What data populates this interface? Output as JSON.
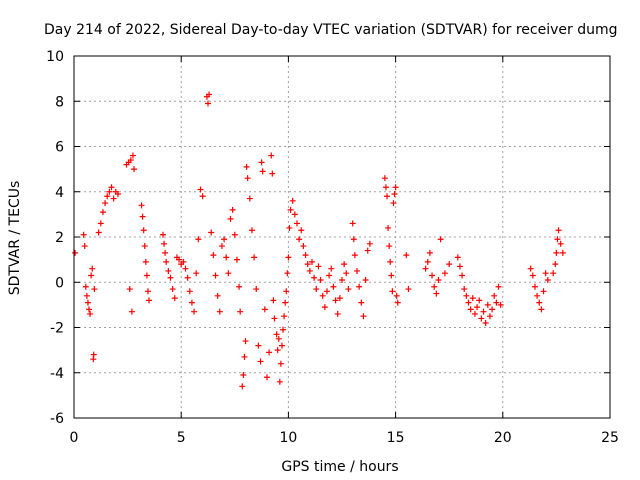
{
  "chart_data": {
    "type": "scatter",
    "title": "Day 214 of 2022, Sidereal Day-to-day VTEC variation (SDTVAR) for receiver dumg",
    "xlabel": "GPS time / hours",
    "ylabel": "SDTVAR / TECUs",
    "xlim": [
      0,
      25
    ],
    "ylim": [
      -6,
      10
    ],
    "xticks": [
      0,
      5,
      10,
      15,
      20,
      25
    ],
    "yticks": [
      -6,
      -4,
      -2,
      0,
      2,
      4,
      6,
      8,
      10
    ],
    "grid": true,
    "marker": "+",
    "series": [
      {
        "name": "SDTVAR",
        "color": "#ff0000",
        "points": [
          [
            0.05,
            1.3
          ],
          [
            0.45,
            2.1
          ],
          [
            0.5,
            1.6
          ],
          [
            0.55,
            -0.2
          ],
          [
            0.6,
            -0.6
          ],
          [
            0.65,
            -0.9
          ],
          [
            0.7,
            -1.2
          ],
          [
            0.75,
            -1.4
          ],
          [
            0.8,
            0.3
          ],
          [
            0.85,
            0.6
          ],
          [
            0.9,
            -3.4
          ],
          [
            0.92,
            -3.2
          ],
          [
            0.95,
            -0.3
          ],
          [
            1.15,
            2.2
          ],
          [
            1.25,
            2.6
          ],
          [
            1.35,
            3.1
          ],
          [
            1.45,
            3.5
          ],
          [
            1.55,
            3.8
          ],
          [
            1.65,
            4.0
          ],
          [
            1.75,
            4.2
          ],
          [
            1.85,
            3.7
          ],
          [
            1.95,
            4.0
          ],
          [
            2.05,
            3.9
          ],
          [
            2.45,
            5.2
          ],
          [
            2.55,
            5.3
          ],
          [
            2.65,
            5.4
          ],
          [
            2.75,
            5.6
          ],
          [
            2.6,
            -0.3
          ],
          [
            2.7,
            -1.3
          ],
          [
            2.8,
            5.0
          ],
          [
            3.15,
            3.4
          ],
          [
            3.2,
            2.9
          ],
          [
            3.25,
            2.3
          ],
          [
            3.3,
            1.6
          ],
          [
            3.35,
            0.9
          ],
          [
            3.4,
            0.3
          ],
          [
            3.45,
            -0.4
          ],
          [
            3.5,
            -0.8
          ],
          [
            4.15,
            2.1
          ],
          [
            4.2,
            1.7
          ],
          [
            4.25,
            1.3
          ],
          [
            4.3,
            0.9
          ],
          [
            4.4,
            0.5
          ],
          [
            4.5,
            0.2
          ],
          [
            4.6,
            -0.3
          ],
          [
            4.7,
            -0.7
          ],
          [
            4.8,
            1.1
          ],
          [
            4.9,
            1.0
          ],
          [
            5.0,
            0.8
          ],
          [
            5.1,
            0.9
          ],
          [
            5.2,
            0.6
          ],
          [
            5.3,
            0.2
          ],
          [
            5.4,
            -0.4
          ],
          [
            5.5,
            -0.9
          ],
          [
            5.6,
            -1.3
          ],
          [
            5.7,
            0.4
          ],
          [
            5.8,
            1.9
          ],
          [
            5.9,
            4.1
          ],
          [
            6.0,
            3.8
          ],
          [
            6.2,
            8.2
          ],
          [
            6.25,
            7.9
          ],
          [
            6.3,
            8.3
          ],
          [
            6.4,
            2.2
          ],
          [
            6.5,
            1.2
          ],
          [
            6.6,
            0.3
          ],
          [
            6.7,
            -0.6
          ],
          [
            6.8,
            -1.3
          ],
          [
            6.9,
            1.6
          ],
          [
            7.0,
            1.9
          ],
          [
            7.1,
            1.1
          ],
          [
            7.2,
            0.4
          ],
          [
            7.3,
            2.8
          ],
          [
            7.4,
            3.2
          ],
          [
            7.5,
            2.1
          ],
          [
            7.6,
            1.0
          ],
          [
            7.7,
            -0.2
          ],
          [
            7.75,
            -1.3
          ],
          [
            7.85,
            -4.6
          ],
          [
            7.9,
            -4.1
          ],
          [
            7.95,
            -3.3
          ],
          [
            8.0,
            -2.6
          ],
          [
            8.05,
            5.1
          ],
          [
            8.1,
            4.6
          ],
          [
            8.2,
            3.7
          ],
          [
            8.3,
            2.3
          ],
          [
            8.4,
            1.1
          ],
          [
            8.5,
            -0.3
          ],
          [
            8.6,
            -2.8
          ],
          [
            8.7,
            -3.5
          ],
          [
            8.75,
            5.3
          ],
          [
            8.8,
            4.9
          ],
          [
            8.9,
            -1.2
          ],
          [
            9.0,
            -4.2
          ],
          [
            9.1,
            -3.1
          ],
          [
            9.2,
            5.6
          ],
          [
            9.25,
            4.8
          ],
          [
            9.3,
            -0.8
          ],
          [
            9.35,
            -1.6
          ],
          [
            9.45,
            -2.3
          ],
          [
            9.5,
            -3.0
          ],
          [
            9.55,
            -2.5
          ],
          [
            9.6,
            -4.4
          ],
          [
            9.65,
            -3.6
          ],
          [
            9.7,
            -2.8
          ],
          [
            9.75,
            -2.1
          ],
          [
            9.8,
            -1.5
          ],
          [
            9.85,
            -0.9
          ],
          [
            9.9,
            -0.4
          ],
          [
            9.95,
            0.4
          ],
          [
            10.0,
            1.1
          ],
          [
            10.05,
            2.4
          ],
          [
            10.1,
            3.2
          ],
          [
            10.2,
            3.6
          ],
          [
            10.3,
            3.0
          ],
          [
            10.4,
            2.6
          ],
          [
            10.5,
            1.9
          ],
          [
            10.6,
            2.3
          ],
          [
            10.7,
            1.6
          ],
          [
            10.8,
            1.2
          ],
          [
            10.9,
            0.8
          ],
          [
            11.0,
            0.5
          ],
          [
            11.1,
            0.9
          ],
          [
            11.2,
            0.2
          ],
          [
            11.3,
            -0.3
          ],
          [
            11.4,
            0.7
          ],
          [
            11.5,
            0.1
          ],
          [
            11.6,
            -0.6
          ],
          [
            11.7,
            -1.1
          ],
          [
            11.8,
            -0.4
          ],
          [
            11.9,
            0.3
          ],
          [
            12.0,
            0.6
          ],
          [
            12.1,
            -0.2
          ],
          [
            12.2,
            -0.8
          ],
          [
            12.3,
            -1.4
          ],
          [
            12.4,
            -0.7
          ],
          [
            12.5,
            0.1
          ],
          [
            12.6,
            0.8
          ],
          [
            12.7,
            0.4
          ],
          [
            12.8,
            -0.3
          ],
          [
            13.0,
            2.6
          ],
          [
            13.05,
            1.9
          ],
          [
            13.1,
            1.2
          ],
          [
            13.2,
            0.5
          ],
          [
            13.3,
            -0.2
          ],
          [
            13.4,
            -0.9
          ],
          [
            13.5,
            -1.5
          ],
          [
            13.6,
            0.1
          ],
          [
            13.7,
            1.4
          ],
          [
            13.8,
            1.7
          ],
          [
            14.5,
            4.6
          ],
          [
            14.55,
            4.2
          ],
          [
            14.6,
            3.8
          ],
          [
            14.65,
            2.4
          ],
          [
            14.7,
            1.6
          ],
          [
            14.75,
            0.9
          ],
          [
            14.8,
            0.3
          ],
          [
            14.85,
            -0.4
          ],
          [
            14.9,
            3.5
          ],
          [
            14.95,
            3.9
          ],
          [
            15.0,
            4.2
          ],
          [
            15.05,
            -0.6
          ],
          [
            15.1,
            -0.9
          ],
          [
            15.5,
            1.2
          ],
          [
            15.6,
            -0.3
          ],
          [
            16.4,
            0.6
          ],
          [
            16.5,
            0.9
          ],
          [
            16.6,
            1.3
          ],
          [
            16.7,
            0.3
          ],
          [
            16.8,
            -0.2
          ],
          [
            16.9,
            -0.5
          ],
          [
            17.0,
            0.1
          ],
          [
            17.1,
            1.9
          ],
          [
            17.3,
            0.4
          ],
          [
            17.5,
            0.8
          ],
          [
            17.9,
            1.1
          ],
          [
            18.0,
            0.7
          ],
          [
            18.1,
            0.3
          ],
          [
            18.2,
            -0.3
          ],
          [
            18.3,
            -0.6
          ],
          [
            18.4,
            -0.9
          ],
          [
            18.5,
            -1.2
          ],
          [
            18.6,
            -0.7
          ],
          [
            18.7,
            -1.4
          ],
          [
            18.8,
            -1.1
          ],
          [
            18.9,
            -0.8
          ],
          [
            19.0,
            -1.6
          ],
          [
            19.1,
            -1.3
          ],
          [
            19.2,
            -1.8
          ],
          [
            19.3,
            -1.0
          ],
          [
            19.4,
            -1.5
          ],
          [
            19.5,
            -1.2
          ],
          [
            19.6,
            -0.6
          ],
          [
            19.7,
            -0.9
          ],
          [
            19.8,
            -0.2
          ],
          [
            19.9,
            -1.0
          ],
          [
            21.3,
            0.6
          ],
          [
            21.4,
            0.3
          ],
          [
            21.5,
            -0.2
          ],
          [
            21.6,
            -0.6
          ],
          [
            21.7,
            -0.9
          ],
          [
            21.8,
            -1.2
          ],
          [
            21.9,
            -0.4
          ],
          [
            22.0,
            0.4
          ],
          [
            22.1,
            0.1
          ],
          [
            22.35,
            0.4
          ],
          [
            22.45,
            0.8
          ],
          [
            22.5,
            1.3
          ],
          [
            22.55,
            1.9
          ],
          [
            22.6,
            2.3
          ],
          [
            22.7,
            1.7
          ],
          [
            22.8,
            1.3
          ]
        ]
      }
    ]
  }
}
